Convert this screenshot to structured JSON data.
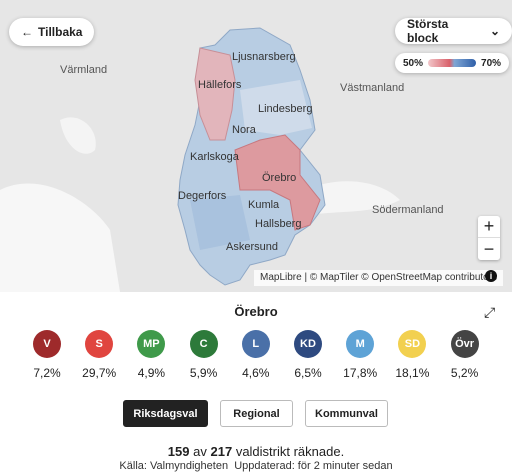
{
  "map": {
    "back_button": "Tillbaka",
    "dropdown": "Största block",
    "legend": {
      "min": "50%",
      "max": "70%"
    },
    "labels": [
      "Värmland",
      "Västmanland",
      "Södermanland",
      "Ljusnarsberg",
      "Hällefors",
      "Lindesberg",
      "Nora",
      "Karlskoga",
      "Örebro",
      "Degerfors",
      "Kumla",
      "Hallsberg",
      "Askersund"
    ],
    "attribution": "MapLibre | © MapTiler © OpenStreetMap contributors"
  },
  "panel": {
    "title": "Örebro",
    "parties": [
      {
        "abbr": "V",
        "share": "7,2%",
        "color": "#9e2a2b"
      },
      {
        "abbr": "S",
        "share": "29,7%",
        "color": "#e0453f"
      },
      {
        "abbr": "MP",
        "share": "4,9%",
        "color": "#3f9a4a"
      },
      {
        "abbr": "C",
        "share": "5,9%",
        "color": "#2d7a3a"
      },
      {
        "abbr": "L",
        "share": "4,6%",
        "color": "#4a70a8"
      },
      {
        "abbr": "KD",
        "share": "6,5%",
        "color": "#2e4a80"
      },
      {
        "abbr": "M",
        "share": "17,8%",
        "color": "#5ea3d6"
      },
      {
        "abbr": "SD",
        "share": "18,1%",
        "color": "#f2d04f"
      },
      {
        "abbr": "Övr",
        "share": "5,2%",
        "color": "#444444"
      }
    ],
    "tabs": [
      "Riksdagsval",
      "Regional",
      "Kommunval"
    ],
    "count": {
      "counted": "159",
      "middle": "av",
      "total": "217",
      "end": "valdistrikt räknade."
    },
    "source": "Källa: Valmyndigheten",
    "updated": "Uppdaterad: för 2 minuter sedan"
  }
}
